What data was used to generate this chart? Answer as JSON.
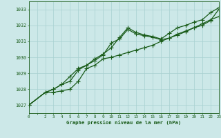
{
  "title": "Graphe pression niveau de la mer (hPa)",
  "bg_color": "#cce8e8",
  "grid_color": "#a8d0d0",
  "line_color": "#1a5c1a",
  "xlim": [
    0,
    23
  ],
  "ylim": [
    1026.5,
    1033.5
  ],
  "yticks": [
    1027,
    1028,
    1029,
    1030,
    1031,
    1032,
    1033
  ],
  "xtick_labels": [
    "0",
    "",
    "2",
    "3",
    "4",
    "5",
    "6",
    "7",
    "8",
    "9",
    "10",
    "11",
    "12",
    "13",
    "14",
    "15",
    "16",
    "17",
    "18",
    "19",
    "20",
    "21",
    "22",
    "23"
  ],
  "xtick_vals": [
    0,
    1,
    2,
    3,
    4,
    5,
    6,
    7,
    8,
    9,
    10,
    11,
    12,
    13,
    14,
    15,
    16,
    17,
    18,
    19,
    20,
    21,
    22,
    23
  ],
  "series1": [
    1027.0,
    null,
    1027.8,
    1027.8,
    1027.9,
    1028.0,
    1028.5,
    1029.3,
    1029.5,
    1029.9,
    1030.0,
    1030.15,
    1030.3,
    1030.45,
    1030.6,
    1030.75,
    1031.0,
    1031.2,
    1031.45,
    1031.65,
    1031.85,
    1032.1,
    1032.35,
    1032.55
  ],
  "series2": [
    1027.0,
    null,
    1027.8,
    1028.0,
    1028.3,
    1028.5,
    1029.2,
    1029.5,
    1029.8,
    1030.15,
    1030.9,
    1031.15,
    1031.75,
    1031.45,
    1031.35,
    1031.25,
    1031.1,
    1031.2,
    1031.4,
    1031.6,
    1031.85,
    1032.0,
    1032.3,
    1033.0
  ],
  "series3": [
    1027.0,
    null,
    1027.8,
    1028.0,
    1028.3,
    1028.8,
    1029.3,
    1029.5,
    1029.9,
    1030.2,
    1030.6,
    1031.25,
    1031.85,
    1031.55,
    1031.4,
    1031.3,
    1031.15,
    1031.5,
    1031.85,
    1032.0,
    1032.2,
    1032.35,
    1032.8,
    1033.1
  ],
  "marker": "+",
  "markersize": 4,
  "linewidth": 0.9
}
